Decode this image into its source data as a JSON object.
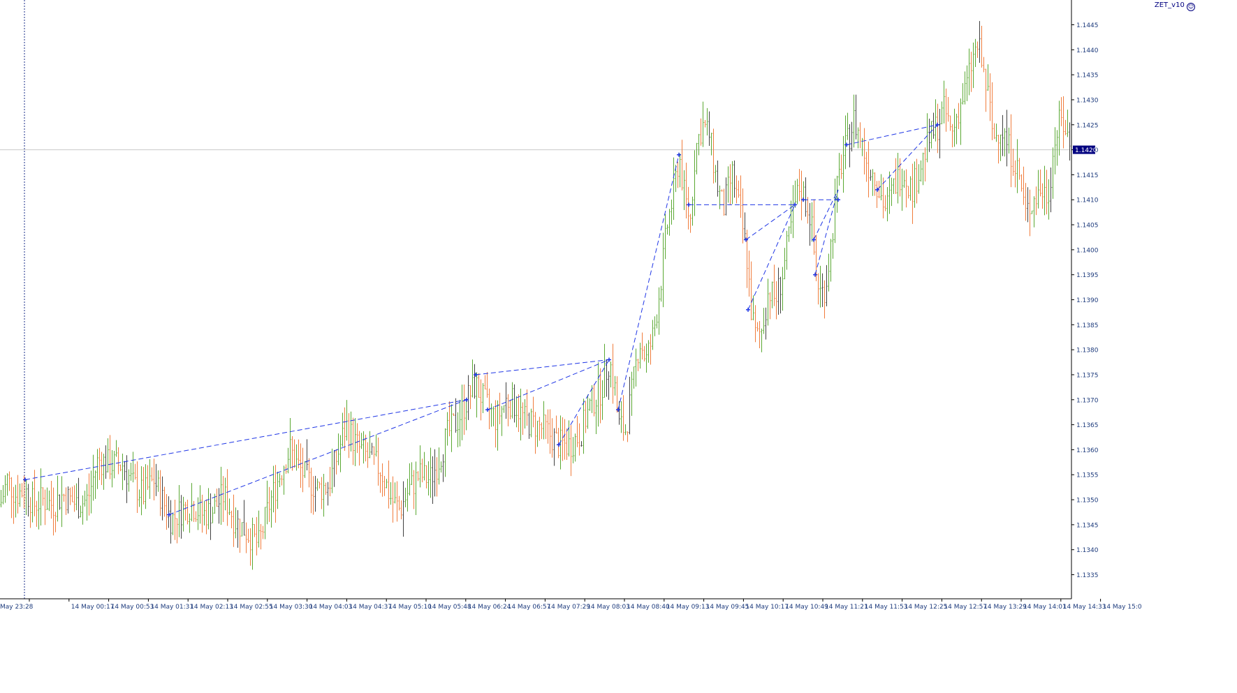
{
  "indicator": {
    "name": "ZET_v10",
    "icon": "smiley-icon"
  },
  "colors": {
    "background": "#ffffff",
    "axis": "#000000",
    "bull": "#5aa832",
    "bear": "#f07c3c",
    "neutral": "#404040",
    "zigzag": "#1f36e6",
    "price_tag_bg": "#000080",
    "price_tag_text": "#ffffff",
    "hline": "#c8c8c8",
    "vline": "#1a2c8a",
    "tick_text": "#1c3a7c"
  },
  "chart_data": {
    "type": "candlestick",
    "symbol_price_current": 1.142,
    "current_price_label": "1.1420",
    "ylim": [
      1.133,
      1.145
    ],
    "y_ticks": [
      "1.1335",
      "1.1340",
      "1.1345",
      "1.1350",
      "1.1355",
      "1.1360",
      "1.1365",
      "1.1370",
      "1.1375",
      "1.1380",
      "1.1385",
      "1.1390",
      "1.1395",
      "1.1400",
      "1.1405",
      "1.1410",
      "1.1415",
      "1.1420",
      "1.1425",
      "1.1430",
      "1.1435",
      "1.1440",
      "1.1445"
    ],
    "x_ticks": [
      "May 23:28",
      "14 May 00:17",
      "14 May 00:53",
      "14 May 01:31",
      "14 May 02:13",
      "14 May 02:55",
      "14 May 03:30",
      "14 May 04:03",
      "14 May 04:37",
      "14 May 05:10",
      "14 May 05:48",
      "14 May 06:24",
      "14 May 06:57",
      "14 May 07:29",
      "14 May 08:03",
      "14 May 08:40",
      "14 May 09:13",
      "14 May 09:45",
      "14 May 10:17",
      "14 May 10:49",
      "14 May 11:21",
      "14 May 11:53",
      "14 May 12:25",
      "14 May 12:57",
      "14 May 13:29",
      "14 May 14:01",
      "14 May 14:33",
      "14 May 15:0"
    ],
    "price_path": [
      [
        0,
        1.1349
      ],
      [
        10,
        1.1354
      ],
      [
        22,
        1.1351
      ],
      [
        35,
        1.1352
      ],
      [
        48,
        1.1349
      ],
      [
        60,
        1.135
      ],
      [
        75,
        1.1349
      ],
      [
        90,
        1.1351
      ],
      [
        110,
        1.1349
      ],
      [
        125,
        1.135
      ],
      [
        140,
        1.1358
      ],
      [
        158,
        1.1357
      ],
      [
        175,
        1.1357
      ],
      [
        190,
        1.1353
      ],
      [
        205,
        1.1351
      ],
      [
        220,
        1.1354
      ],
      [
        235,
        1.1349
      ],
      [
        245,
        1.1346
      ],
      [
        260,
        1.1348
      ],
      [
        275,
        1.1349
      ],
      [
        290,
        1.1347
      ],
      [
        305,
        1.1348
      ],
      [
        320,
        1.1351
      ],
      [
        335,
        1.1346
      ],
      [
        350,
        1.1344
      ],
      [
        370,
        1.1341
      ],
      [
        385,
        1.1349
      ],
      [
        395,
        1.1353
      ],
      [
        405,
        1.1357
      ],
      [
        415,
        1.136
      ],
      [
        425,
        1.1357
      ],
      [
        440,
        1.1354
      ],
      [
        455,
        1.1352
      ],
      [
        470,
        1.1353
      ],
      [
        485,
        1.136
      ],
      [
        495,
        1.1365
      ],
      [
        505,
        1.1362
      ],
      [
        515,
        1.136
      ],
      [
        530,
        1.1358
      ],
      [
        545,
        1.1356
      ],
      [
        560,
        1.135
      ],
      [
        572,
        1.1348
      ],
      [
        585,
        1.1352
      ],
      [
        600,
        1.1355
      ],
      [
        615,
        1.1354
      ],
      [
        628,
        1.1358
      ],
      [
        640,
        1.1363
      ],
      [
        655,
        1.1366
      ],
      [
        668,
        1.137
      ],
      [
        680,
        1.1373
      ],
      [
        695,
        1.1369
      ],
      [
        710,
        1.1366
      ],
      [
        725,
        1.137
      ],
      [
        738,
        1.1369
      ],
      [
        750,
        1.1366
      ],
      [
        765,
        1.1365
      ],
      [
        780,
        1.1364
      ],
      [
        800,
        1.1361
      ],
      [
        815,
        1.1361
      ],
      [
        830,
        1.1363
      ],
      [
        845,
        1.1369
      ],
      [
        860,
        1.1372
      ],
      [
        872,
        1.1378
      ],
      [
        880,
        1.1372
      ],
      [
        885,
        1.1365
      ],
      [
        895,
        1.1364
      ],
      [
        905,
        1.1372
      ],
      [
        915,
        1.1382
      ],
      [
        925,
        1.1378
      ],
      [
        935,
        1.1383
      ],
      [
        945,
        1.1393
      ],
      [
        955,
        1.1405
      ],
      [
        965,
        1.1412
      ],
      [
        972,
        1.1419
      ],
      [
        980,
        1.141
      ],
      [
        988,
        1.1406
      ],
      [
        995,
        1.142
      ],
      [
        1005,
        1.1425
      ],
      [
        1015,
        1.1423
      ],
      [
        1025,
        1.1414
      ],
      [
        1035,
        1.1408
      ],
      [
        1048,
        1.1415
      ],
      [
        1058,
        1.1408
      ],
      [
        1068,
        1.14
      ],
      [
        1075,
        1.1388
      ],
      [
        1082,
        1.1382
      ],
      [
        1090,
        1.1384
      ],
      [
        1100,
        1.1392
      ],
      [
        1110,
        1.139
      ],
      [
        1120,
        1.1395
      ],
      [
        1130,
        1.1403
      ],
      [
        1138,
        1.1409
      ],
      [
        1145,
        1.1413
      ],
      [
        1152,
        1.141
      ],
      [
        1160,
        1.1407
      ],
      [
        1168,
        1.1395
      ],
      [
        1175,
        1.1391
      ],
      [
        1182,
        1.1393
      ],
      [
        1190,
        1.1402
      ],
      [
        1198,
        1.1412
      ],
      [
        1205,
        1.1418
      ],
      [
        1212,
        1.1421
      ],
      [
        1222,
        1.1426
      ],
      [
        1232,
        1.1422
      ],
      [
        1242,
        1.1417
      ],
      [
        1252,
        1.1415
      ],
      [
        1258,
        1.1412
      ],
      [
        1268,
        1.1408
      ],
      [
        1280,
        1.1413
      ],
      [
        1292,
        1.1416
      ],
      [
        1305,
        1.1412
      ],
      [
        1318,
        1.1417
      ],
      [
        1330,
        1.1422
      ],
      [
        1342,
        1.1425
      ],
      [
        1352,
        1.1428
      ],
      [
        1362,
        1.1423
      ],
      [
        1372,
        1.1428
      ],
      [
        1382,
        1.1432
      ],
      [
        1392,
        1.1438
      ],
      [
        1400,
        1.1441
      ],
      [
        1408,
        1.1435
      ],
      [
        1415,
        1.143
      ],
      [
        1422,
        1.1422
      ],
      [
        1432,
        1.1425
      ],
      [
        1442,
        1.1421
      ],
      [
        1452,
        1.1418
      ],
      [
        1460,
        1.1414
      ],
      [
        1468,
        1.1407
      ],
      [
        1478,
        1.141
      ],
      [
        1490,
        1.1412
      ],
      [
        1500,
        1.1411
      ],
      [
        1510,
        1.1422
      ],
      [
        1518,
        1.1426
      ],
      [
        1526,
        1.1424
      ],
      [
        1532,
        1.142
      ]
    ],
    "zigzag_lines": [
      [
        [
          36,
          1.1354
        ],
        [
          668,
          1.137
        ]
      ],
      [
        [
          242,
          1.1347
        ],
        [
          668,
          1.137
        ]
      ],
      [
        [
          681,
          1.1375
        ],
        [
          872,
          1.1378
        ]
      ],
      [
        [
          698,
          1.1368
        ],
        [
          872,
          1.1378
        ]
      ],
      [
        [
          800,
          1.1361
        ],
        [
          872,
          1.1378
        ]
      ],
      [
        [
          885,
          1.1368
        ],
        [
          972,
          1.1419
        ]
      ],
      [
        [
          986,
          1.1409
        ],
        [
          1138,
          1.1409
        ]
      ],
      [
        [
          1068,
          1.1402
        ],
        [
          1138,
          1.1409
        ]
      ],
      [
        [
          1071,
          1.1388
        ],
        [
          1138,
          1.1409
        ]
      ],
      [
        [
          1150,
          1.141
        ],
        [
          1200,
          1.141
        ]
      ],
      [
        [
          1165,
          1.1402
        ],
        [
          1200,
          1.1412
        ]
      ],
      [
        [
          1167,
          1.1395
        ],
        [
          1200,
          1.1412
        ]
      ],
      [
        [
          1212,
          1.1421
        ],
        [
          1342,
          1.1425
        ]
      ],
      [
        [
          1256,
          1.1412
        ],
        [
          1342,
          1.1425
        ]
      ]
    ],
    "zigzag_markers": [
      [
        36,
        1.1354
      ],
      [
        242,
        1.1347
      ],
      [
        668,
        1.137
      ],
      [
        681,
        1.1375
      ],
      [
        698,
        1.1368
      ],
      [
        800,
        1.1361
      ],
      [
        872,
        1.1378
      ],
      [
        885,
        1.1368
      ],
      [
        972,
        1.1419
      ],
      [
        986,
        1.1409
      ],
      [
        1068,
        1.1402
      ],
      [
        1071,
        1.1388
      ],
      [
        1138,
        1.1409
      ],
      [
        1150,
        1.141
      ],
      [
        1165,
        1.1402
      ],
      [
        1167,
        1.1395
      ],
      [
        1200,
        1.141
      ],
      [
        1212,
        1.1421
      ],
      [
        1256,
        1.1412
      ],
      [
        1342,
        1.1425
      ]
    ]
  }
}
